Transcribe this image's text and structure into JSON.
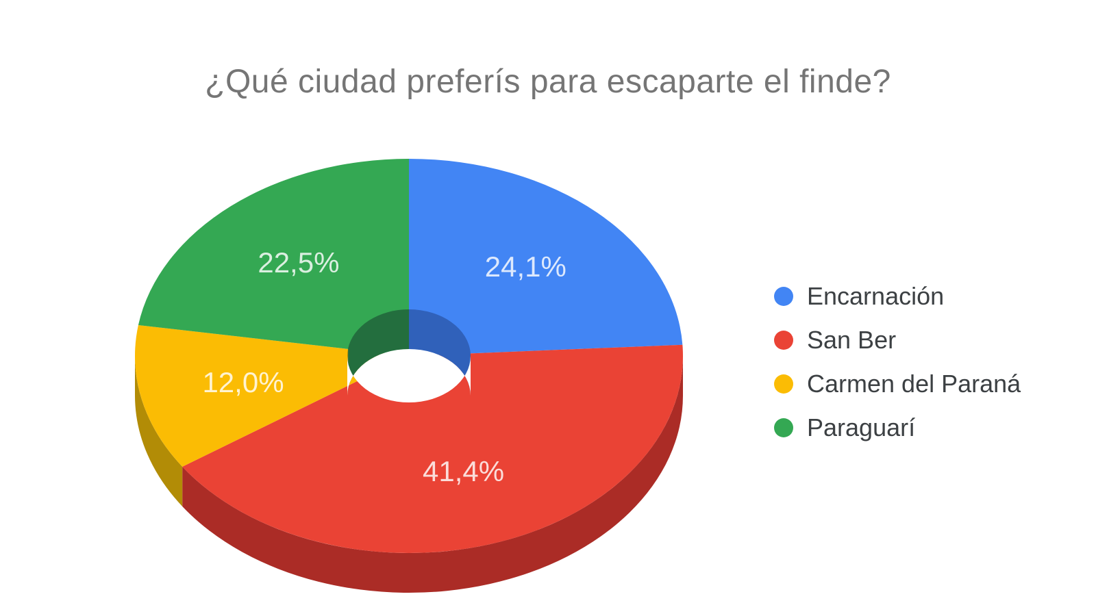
{
  "chart_data": {
    "type": "pie",
    "style": "3d-donut",
    "title": "¿Qué ciudad preferís para escaparte el finde?",
    "unit": "%",
    "decimal_separator": ",",
    "legend_position": "right",
    "start_angle_deg": 0,
    "direction": "clockwise",
    "grid": false,
    "series": [
      {
        "label": "Encarnación",
        "value_pct": 24.1,
        "display_value": "24,1%",
        "color": "#4285F4",
        "side_color": "#2C5EB8",
        "inner_wall_color": "#3061BA"
      },
      {
        "label": "San Ber",
        "value_pct": 41.4,
        "display_value": "41,4%",
        "color": "#EA4335",
        "side_color": "#AB2C26",
        "inner_wall_color": "#A93226"
      },
      {
        "label": "Carmen del Paraná",
        "value_pct": 12.0,
        "display_value": "12,0%",
        "color": "#FBBC04",
        "side_color": "#B28C06",
        "inner_wall_color": "#B28C06"
      },
      {
        "label": "Paraguarí",
        "value_pct": 22.5,
        "display_value": "22,5%",
        "color": "#34A853",
        "side_color": "#236E3E",
        "inner_wall_color": "#236E3E"
      }
    ],
    "colors": {
      "title_text": "#757575",
      "legend_text": "#3C4043",
      "slice_label_text": "#FFFFFF",
      "background": "#FFFFFF"
    }
  }
}
